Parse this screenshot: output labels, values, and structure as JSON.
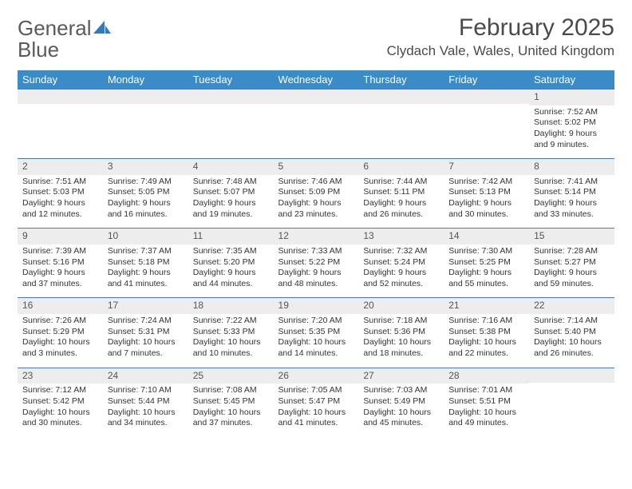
{
  "logo": {
    "word1": "General",
    "word2": "Blue"
  },
  "title": "February 2025",
  "location": "Clydach Vale, Wales, United Kingdom",
  "colors": {
    "header_bg": "#3b8bc8",
    "header_text": "#ffffff",
    "row_border": "#4a7aa8",
    "daynum_bg": "#ededed",
    "body_text": "#333333",
    "logo_gray": "#5a5a5a",
    "logo_blue": "#2f7bbf"
  },
  "typography": {
    "title_fontsize": 30,
    "location_fontsize": 17,
    "header_fontsize": 13,
    "daynum_fontsize": 12,
    "cell_fontsize": 10.5
  },
  "weekdays": [
    "Sunday",
    "Monday",
    "Tuesday",
    "Wednesday",
    "Thursday",
    "Friday",
    "Saturday"
  ],
  "weeks": [
    [
      null,
      null,
      null,
      null,
      null,
      null,
      {
        "d": "1",
        "sr": "7:52 AM",
        "ss": "5:02 PM",
        "dl": "9 hours and 9 minutes."
      }
    ],
    [
      {
        "d": "2",
        "sr": "7:51 AM",
        "ss": "5:03 PM",
        "dl": "9 hours and 12 minutes."
      },
      {
        "d": "3",
        "sr": "7:49 AM",
        "ss": "5:05 PM",
        "dl": "9 hours and 16 minutes."
      },
      {
        "d": "4",
        "sr": "7:48 AM",
        "ss": "5:07 PM",
        "dl": "9 hours and 19 minutes."
      },
      {
        "d": "5",
        "sr": "7:46 AM",
        "ss": "5:09 PM",
        "dl": "9 hours and 23 minutes."
      },
      {
        "d": "6",
        "sr": "7:44 AM",
        "ss": "5:11 PM",
        "dl": "9 hours and 26 minutes."
      },
      {
        "d": "7",
        "sr": "7:42 AM",
        "ss": "5:13 PM",
        "dl": "9 hours and 30 minutes."
      },
      {
        "d": "8",
        "sr": "7:41 AM",
        "ss": "5:14 PM",
        "dl": "9 hours and 33 minutes."
      }
    ],
    [
      {
        "d": "9",
        "sr": "7:39 AM",
        "ss": "5:16 PM",
        "dl": "9 hours and 37 minutes."
      },
      {
        "d": "10",
        "sr": "7:37 AM",
        "ss": "5:18 PM",
        "dl": "9 hours and 41 minutes."
      },
      {
        "d": "11",
        "sr": "7:35 AM",
        "ss": "5:20 PM",
        "dl": "9 hours and 44 minutes."
      },
      {
        "d": "12",
        "sr": "7:33 AM",
        "ss": "5:22 PM",
        "dl": "9 hours and 48 minutes."
      },
      {
        "d": "13",
        "sr": "7:32 AM",
        "ss": "5:24 PM",
        "dl": "9 hours and 52 minutes."
      },
      {
        "d": "14",
        "sr": "7:30 AM",
        "ss": "5:25 PM",
        "dl": "9 hours and 55 minutes."
      },
      {
        "d": "15",
        "sr": "7:28 AM",
        "ss": "5:27 PM",
        "dl": "9 hours and 59 minutes."
      }
    ],
    [
      {
        "d": "16",
        "sr": "7:26 AM",
        "ss": "5:29 PM",
        "dl": "10 hours and 3 minutes."
      },
      {
        "d": "17",
        "sr": "7:24 AM",
        "ss": "5:31 PM",
        "dl": "10 hours and 7 minutes."
      },
      {
        "d": "18",
        "sr": "7:22 AM",
        "ss": "5:33 PM",
        "dl": "10 hours and 10 minutes."
      },
      {
        "d": "19",
        "sr": "7:20 AM",
        "ss": "5:35 PM",
        "dl": "10 hours and 14 minutes."
      },
      {
        "d": "20",
        "sr": "7:18 AM",
        "ss": "5:36 PM",
        "dl": "10 hours and 18 minutes."
      },
      {
        "d": "21",
        "sr": "7:16 AM",
        "ss": "5:38 PM",
        "dl": "10 hours and 22 minutes."
      },
      {
        "d": "22",
        "sr": "7:14 AM",
        "ss": "5:40 PM",
        "dl": "10 hours and 26 minutes."
      }
    ],
    [
      {
        "d": "23",
        "sr": "7:12 AM",
        "ss": "5:42 PM",
        "dl": "10 hours and 30 minutes."
      },
      {
        "d": "24",
        "sr": "7:10 AM",
        "ss": "5:44 PM",
        "dl": "10 hours and 34 minutes."
      },
      {
        "d": "25",
        "sr": "7:08 AM",
        "ss": "5:45 PM",
        "dl": "10 hours and 37 minutes."
      },
      {
        "d": "26",
        "sr": "7:05 AM",
        "ss": "5:47 PM",
        "dl": "10 hours and 41 minutes."
      },
      {
        "d": "27",
        "sr": "7:03 AM",
        "ss": "5:49 PM",
        "dl": "10 hours and 45 minutes."
      },
      {
        "d": "28",
        "sr": "7:01 AM",
        "ss": "5:51 PM",
        "dl": "10 hours and 49 minutes."
      },
      null
    ]
  ],
  "labels": {
    "sunrise": "Sunrise:",
    "sunset": "Sunset:",
    "daylight": "Daylight:"
  }
}
